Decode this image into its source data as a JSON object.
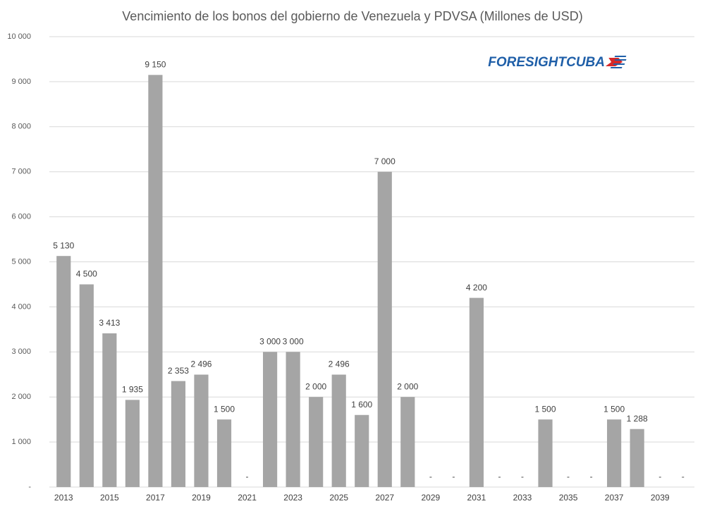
{
  "chart_data": {
    "type": "bar",
    "title": "Vencimiento de los bonos del gobierno de Venezuela y PDVSA (Millones de USD)",
    "logo": "FORESIGHTCUBA",
    "categories": [
      "2013",
      null,
      "2015",
      null,
      "2017",
      null,
      "2019",
      null,
      "2021",
      null,
      "2023",
      null,
      "2025",
      null,
      "2027",
      null,
      "2029",
      null,
      "2031",
      null,
      "2033",
      null,
      "2035",
      null,
      "2037",
      null,
      "2039",
      null
    ],
    "values": [
      5130,
      4500,
      3413,
      1935,
      9150,
      2353,
      2496,
      1500,
      0,
      3000,
      3000,
      2000,
      2496,
      1600,
      7000,
      2000,
      0,
      0,
      4200,
      0,
      0,
      1500,
      0,
      0,
      1500,
      1288,
      0,
      0
    ],
    "value_labels": [
      "5 130",
      "4 500",
      "3 413",
      "1 935",
      "9 150",
      "2 353",
      "2 496",
      "1 500",
      "-",
      "3 000",
      "3 000",
      "2 000",
      "2 496",
      "1 600",
      "7 000",
      "2 000",
      "-",
      "-",
      "4 200",
      "-",
      "-",
      "1 500",
      "-",
      "-",
      "1 500",
      "1 288",
      "-",
      "-"
    ],
    "color": "#a5a5a5",
    "ylim": [
      0,
      10000
    ],
    "yticks": [
      {
        "value": 0,
        "label": "-"
      },
      {
        "value": 1000,
        "label": "1 000"
      },
      {
        "value": 2000,
        "label": "2 000"
      },
      {
        "value": 3000,
        "label": "3 000"
      },
      {
        "value": 4000,
        "label": "4 000"
      },
      {
        "value": 5000,
        "label": "5 000"
      },
      {
        "value": 6000,
        "label": "6 000"
      },
      {
        "value": 7000,
        "label": "7 000"
      },
      {
        "value": 8000,
        "label": "8 000"
      },
      {
        "value": 9000,
        "label": "9 000"
      },
      {
        "value": 10000,
        "label": "10 000"
      }
    ],
    "grid": true
  }
}
